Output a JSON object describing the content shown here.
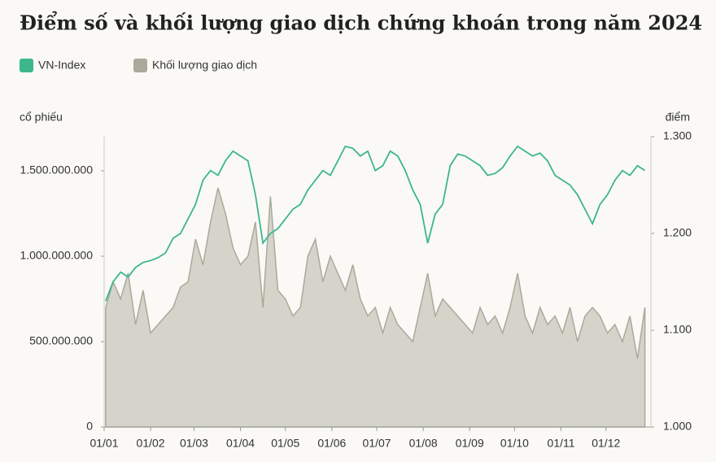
{
  "chart_data": {
    "type": "area-line",
    "title": "Điểm số và khối lượng giao dịch chứng khoán trong năm 2024",
    "ylabel": "cổ phiếu",
    "y2label": "điểm",
    "x": [
      2,
      7,
      12,
      17,
      22,
      27,
      32,
      37,
      42,
      47,
      52,
      57,
      62,
      67,
      72,
      77,
      82,
      87,
      92,
      97,
      102,
      107,
      112,
      117,
      122,
      127,
      132,
      137,
      142,
      147,
      152,
      157,
      162,
      167,
      172,
      177,
      182,
      187,
      192,
      197,
      202,
      207,
      212,
      217,
      222,
      227,
      232,
      237,
      242,
      247,
      252,
      257,
      262,
      267,
      272,
      277,
      282,
      287,
      292,
      297,
      302,
      307,
      312,
      317,
      322,
      327,
      332,
      337,
      342,
      347,
      352,
      357,
      362
    ],
    "xlim": [
      1,
      366
    ],
    "xticks": [
      {
        "value": 1,
        "label": "01/01"
      },
      {
        "value": 32,
        "label": "01/02"
      },
      {
        "value": 61,
        "label": "01/03"
      },
      {
        "value": 92,
        "label": "01/04"
      },
      {
        "value": 122,
        "label": "01/05"
      },
      {
        "value": 153,
        "label": "01/06"
      },
      {
        "value": 183,
        "label": "01/07"
      },
      {
        "value": 214,
        "label": "01/08"
      },
      {
        "value": 245,
        "label": "01/09"
      },
      {
        "value": 275,
        "label": "01/10"
      },
      {
        "value": 306,
        "label": "01/11"
      },
      {
        "value": 336,
        "label": "01/12"
      }
    ],
    "ylim": [
      0,
      1700000000
    ],
    "yticks": [
      0,
      {
        "value": 500000000,
        "label": "500.000.000"
      },
      {
        "value": 1000000000,
        "label": "1.000.000.000"
      },
      {
        "value": 1500000000,
        "label": "1.500.000.000"
      }
    ],
    "y2lim": [
      1000,
      1300
    ],
    "y2ticks": [
      {
        "value": 1000,
        "label": "1.000"
      },
      {
        "value": 1100,
        "label": "1.100"
      },
      {
        "value": 1200,
        "label": "1.200"
      },
      {
        "value": 1300,
        "label": "1.300"
      }
    ],
    "series": [
      {
        "name": "VN-Index",
        "color": "#3db68c",
        "axis": "y2",
        "kind": "line",
        "values": [
          1130,
          1150,
          1160,
          1155,
          1165,
          1170,
          1172,
          1175,
          1180,
          1195,
          1200,
          1215,
          1230,
          1255,
          1265,
          1260,
          1275,
          1285,
          1280,
          1275,
          1240,
          1190,
          1200,
          1205,
          1215,
          1225,
          1230,
          1245,
          1255,
          1265,
          1260,
          1275,
          1290,
          1288,
          1280,
          1285,
          1265,
          1270,
          1285,
          1280,
          1265,
          1245,
          1230,
          1190,
          1220,
          1230,
          1270,
          1282,
          1280,
          1275,
          1270,
          1260,
          1262,
          1268,
          1280,
          1290,
          1285,
          1280,
          1283,
          1275,
          1260,
          1255,
          1250,
          1240,
          1225,
          1210,
          1230,
          1240,
          1255,
          1265,
          1260,
          1270,
          1265
        ]
      },
      {
        "name": "Khối lượng giao dịch",
        "color": "#a9aa9b",
        "kind": "area",
        "values": [
          700000000,
          850000000,
          750000000,
          900000000,
          600000000,
          800000000,
          550000000,
          600000000,
          650000000,
          700000000,
          820000000,
          850000000,
          1100000000,
          950000000,
          1200000000,
          1400000000,
          1250000000,
          1050000000,
          950000000,
          1000000000,
          1200000000,
          700000000,
          1350000000,
          800000000,
          750000000,
          650000000,
          700000000,
          1000000000,
          1100000000,
          850000000,
          1000000000,
          900000000,
          800000000,
          950000000,
          750000000,
          650000000,
          700000000,
          550000000,
          700000000,
          600000000,
          550000000,
          500000000,
          700000000,
          900000000,
          650000000,
          750000000,
          700000000,
          650000000,
          600000000,
          550000000,
          700000000,
          600000000,
          650000000,
          550000000,
          700000000,
          900000000,
          650000000,
          550000000,
          700000000,
          600000000,
          650000000,
          550000000,
          700000000,
          500000000,
          650000000,
          700000000,
          650000000,
          550000000,
          600000000,
          500000000,
          650000000,
          400000000,
          700000000
        ]
      }
    ]
  }
}
